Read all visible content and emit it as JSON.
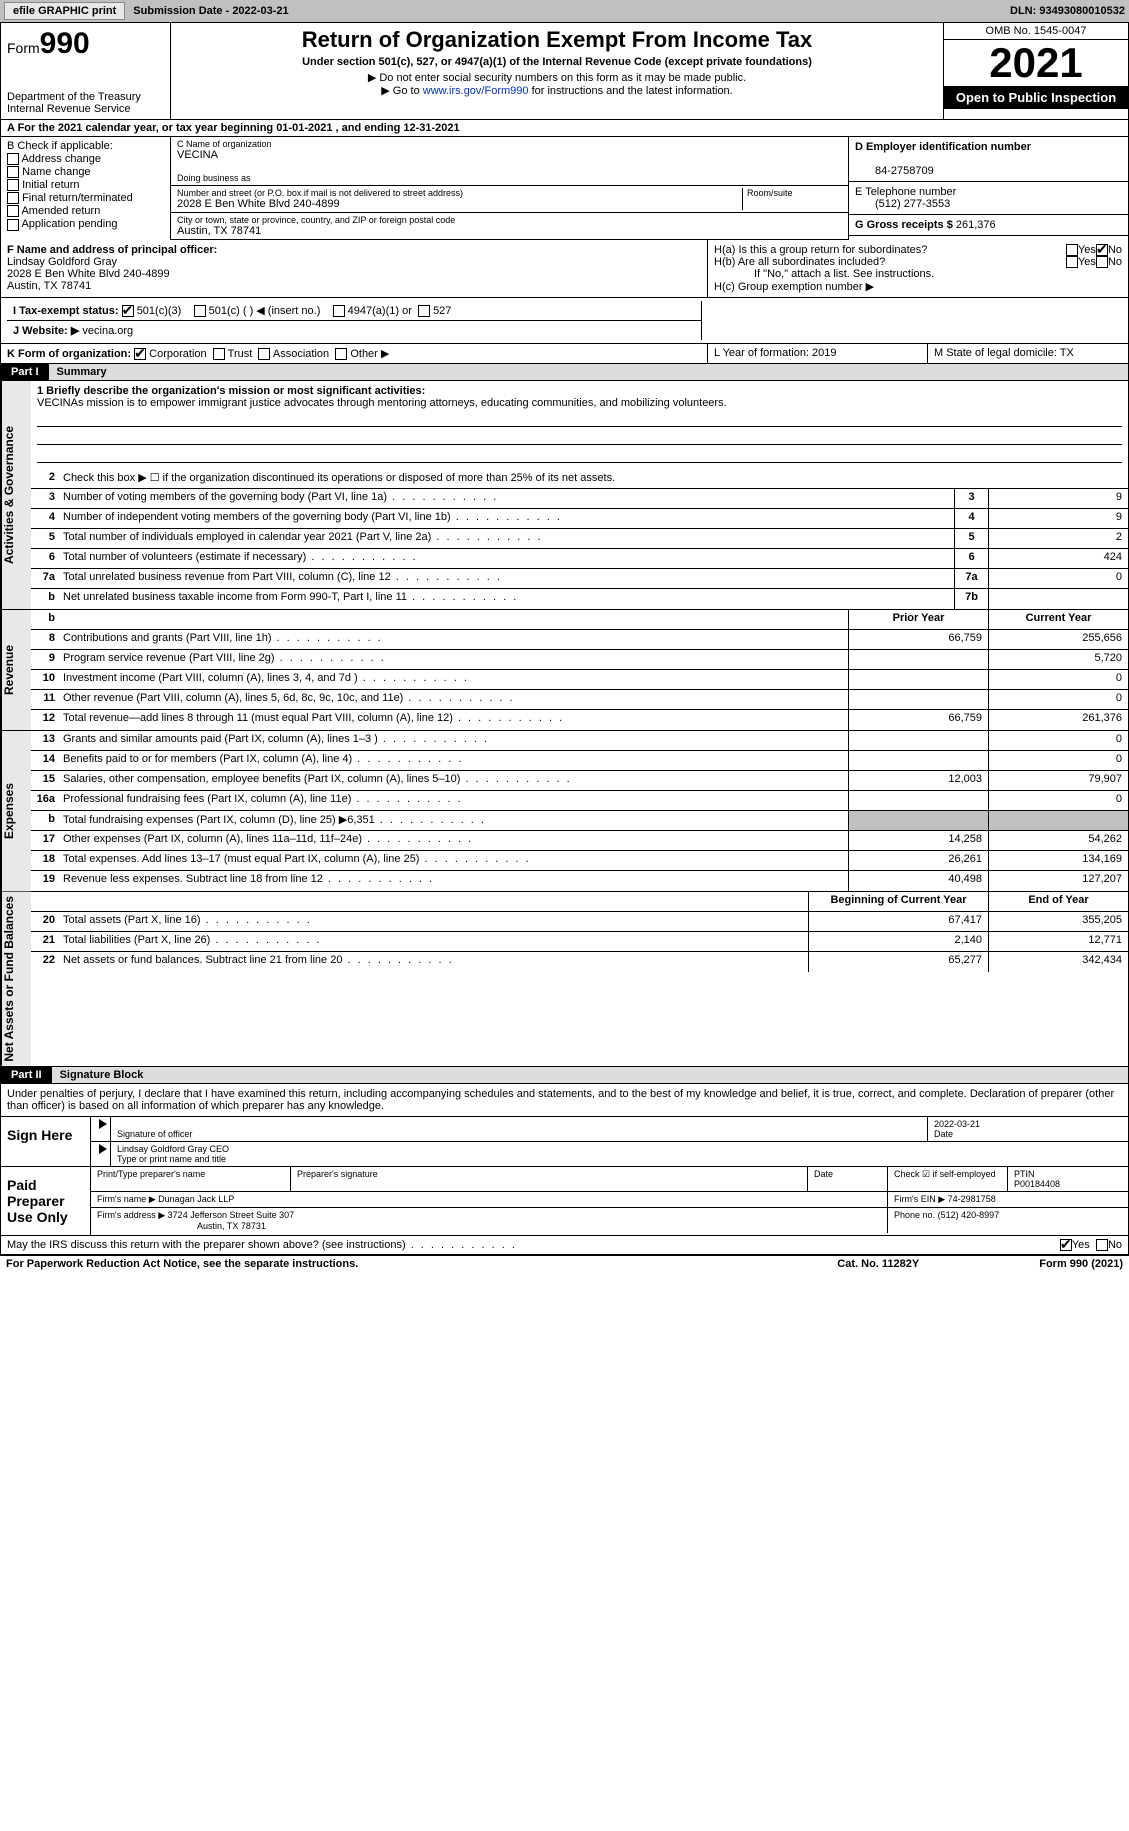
{
  "topbar": {
    "efile": "efile GRAPHIC print",
    "submission": "Submission Date - 2022-03-21",
    "dln": "DLN: 93493080010532"
  },
  "header": {
    "form": "Form",
    "num": "990",
    "dept": "Department of the Treasury Internal Revenue Service",
    "title": "Return of Organization Exempt From Income Tax",
    "sub1": "Under section 501(c), 527, or 4947(a)(1) of the Internal Revenue Code (except private foundations)",
    "sub2": "▶ Do not enter social security numbers on this form as it may be made public.",
    "sub3_pre": "▶ Go to ",
    "sub3_link": "www.irs.gov/Form990",
    "sub3_post": " for instructions and the latest information.",
    "omb": "OMB No. 1545-0047",
    "year": "2021",
    "public": "Open to Public Inspection"
  },
  "rowA": "A For the 2021 calendar year, or tax year beginning 01-01-2021    , and ending 12-31-2021",
  "colB": {
    "hdr": "B Check if applicable:",
    "opts": [
      "Address change",
      "Name change",
      "Initial return",
      "Final return/terminated",
      "Amended return",
      "Application pending"
    ]
  },
  "colC": {
    "name_lbl": "C Name of organization",
    "name": "VECINA",
    "dba_lbl": "Doing business as",
    "dba": "",
    "addr_lbl": "Number and street (or P.O. box if mail is not delivered to street address)",
    "room_lbl": "Room/suite",
    "addr": "2028 E Ben White Blvd 240-4899",
    "city_lbl": "City or town, state or province, country, and ZIP or foreign postal code",
    "city": "Austin, TX  78741"
  },
  "colD": {
    "ein_lbl": "D Employer identification number",
    "ein": "84-2758709",
    "tel_lbl": "E Telephone number",
    "tel": "(512) 277-3553",
    "gross_lbl": "G Gross receipts $",
    "gross": "261,376"
  },
  "rowF": {
    "lbl": "F Name and address of principal officer:",
    "name": "Lindsay Goldford Gray",
    "addr": "2028 E Ben White Blvd 240-4899",
    "city": "Austin, TX  78741"
  },
  "rowH": {
    "a": "H(a)  Is this a group return for subordinates?",
    "b": "H(b)  Are all subordinates included?",
    "bno": "If \"No,\" attach a list. See instructions.",
    "c": "H(c)  Group exemption number ▶",
    "yes": "Yes",
    "no": "No"
  },
  "rowI": {
    "lbl": "I    Tax-exempt status:",
    "o1": "501(c)(3)",
    "o2": "501(c) (   ) ◀ (insert no.)",
    "o3": "4947(a)(1) or",
    "o4": "527"
  },
  "rowJ": {
    "lbl": "J   Website: ▶",
    "val": "vecina.org"
  },
  "rowK": {
    "lbl": "K Form of organization:",
    "o1": "Corporation",
    "o2": "Trust",
    "o3": "Association",
    "o4": "Other ▶",
    "yof": "L Year of formation: 2019",
    "state": "M State of legal domicile: TX"
  },
  "partI": {
    "num": "Part I",
    "lbl": "Summary"
  },
  "mission": {
    "lbl": "1  Briefly describe the organization's mission or most significant activities:",
    "txt": "VECINAs mission is to empower immigrant justice advocates through mentoring attorneys, educating communities, and mobilizing volunteers."
  },
  "gov_lines": [
    {
      "n": "2",
      "t": "Check this box ▶ ☐  if the organization discontinued its operations or disposed of more than 25% of its net assets."
    },
    {
      "n": "3",
      "t": "Number of voting members of the governing body (Part VI, line 1a)",
      "b": "3",
      "v": "9"
    },
    {
      "n": "4",
      "t": "Number of independent voting members of the governing body (Part VI, line 1b)",
      "b": "4",
      "v": "9"
    },
    {
      "n": "5",
      "t": "Total number of individuals employed in calendar year 2021 (Part V, line 2a)",
      "b": "5",
      "v": "2"
    },
    {
      "n": "6",
      "t": "Total number of volunteers (estimate if necessary)",
      "b": "6",
      "v": "424"
    },
    {
      "n": "7a",
      "t": "Total unrelated business revenue from Part VIII, column (C), line 12",
      "b": "7a",
      "v": "0"
    },
    {
      "n": "b",
      "t": "Net unrelated business taxable income from Form 990-T, Part I, line 11",
      "b": "7b",
      "v": ""
    }
  ],
  "rev_hdr": {
    "py": "Prior Year",
    "cy": "Current Year"
  },
  "rev_lines": [
    {
      "n": "8",
      "t": "Contributions and grants (Part VIII, line 1h)",
      "py": "66,759",
      "cy": "255,656"
    },
    {
      "n": "9",
      "t": "Program service revenue (Part VIII, line 2g)",
      "py": "",
      "cy": "5,720"
    },
    {
      "n": "10",
      "t": "Investment income (Part VIII, column (A), lines 3, 4, and 7d )",
      "py": "",
      "cy": "0"
    },
    {
      "n": "11",
      "t": "Other revenue (Part VIII, column (A), lines 5, 6d, 8c, 9c, 10c, and 11e)",
      "py": "",
      "cy": "0"
    },
    {
      "n": "12",
      "t": "Total revenue—add lines 8 through 11 (must equal Part VIII, column (A), line 12)",
      "py": "66,759",
      "cy": "261,376"
    }
  ],
  "exp_lines": [
    {
      "n": "13",
      "t": "Grants and similar amounts paid (Part IX, column (A), lines 1–3 )",
      "py": "",
      "cy": "0"
    },
    {
      "n": "14",
      "t": "Benefits paid to or for members (Part IX, column (A), line 4)",
      "py": "",
      "cy": "0"
    },
    {
      "n": "15",
      "t": "Salaries, other compensation, employee benefits (Part IX, column (A), lines 5–10)",
      "py": "12,003",
      "cy": "79,907"
    },
    {
      "n": "16a",
      "t": "Professional fundraising fees (Part IX, column (A), line 11e)",
      "py": "",
      "cy": "0"
    },
    {
      "n": "b",
      "t": "Total fundraising expenses (Part IX, column (D), line 25) ▶6,351",
      "py": "grey",
      "cy": "grey"
    },
    {
      "n": "17",
      "t": "Other expenses (Part IX, column (A), lines 11a–11d, 11f–24e)",
      "py": "14,258",
      "cy": "54,262"
    },
    {
      "n": "18",
      "t": "Total expenses. Add lines 13–17 (must equal Part IX, column (A), line 25)",
      "py": "26,261",
      "cy": "134,169"
    },
    {
      "n": "19",
      "t": "Revenue less expenses. Subtract line 18 from line 12",
      "py": "40,498",
      "cy": "127,207"
    }
  ],
  "na_hdr": {
    "py": "Beginning of Current Year",
    "cy": "End of Year"
  },
  "na_lines": [
    {
      "n": "20",
      "t": "Total assets (Part X, line 16)",
      "py": "67,417",
      "cy": "355,205"
    },
    {
      "n": "21",
      "t": "Total liabilities (Part X, line 26)",
      "py": "2,140",
      "cy": "12,771"
    },
    {
      "n": "22",
      "t": "Net assets or fund balances. Subtract line 21 from line 20",
      "py": "65,277",
      "cy": "342,434"
    }
  ],
  "partII": {
    "num": "Part II",
    "lbl": "Signature Block"
  },
  "decl": "Under penalties of perjury, I declare that I have examined this return, including accompanying schedules and statements, and to the best of my knowledge and belief, it is true, correct, and complete. Declaration of preparer (other than officer) is based on all information of which preparer has any knowledge.",
  "sign": {
    "lbl": "Sign Here",
    "sig_lbl": "Signature of officer",
    "date": "2022-03-21",
    "date_lbl": "Date",
    "name": "Lindsay Goldford Gray CEO",
    "name_lbl": "Type or print name and title"
  },
  "prep": {
    "lbl": "Paid Preparer Use Only",
    "pname_lbl": "Print/Type preparer's name",
    "psig_lbl": "Preparer's signature",
    "pdate_lbl": "Date",
    "self_lbl": "Check ☑ if self-employed",
    "ptin_lbl": "PTIN",
    "ptin": "P00184408",
    "firm_lbl": "Firm's name   ▶",
    "firm": "Dunagan Jack LLP",
    "fein_lbl": "Firm's EIN ▶",
    "fein": "74-2981758",
    "faddr_lbl": "Firm's address ▶",
    "faddr": "3724 Jefferson Street Suite 307",
    "fcity": "Austin, TX  78731",
    "phone_lbl": "Phone no.",
    "phone": "(512) 420-8997"
  },
  "discuss": "May the IRS discuss this return with the preparer shown above? (see instructions)",
  "footer": {
    "pra": "For Paperwork Reduction Act Notice, see the separate instructions.",
    "cat": "Cat. No. 11282Y",
    "form": "Form 990 (2021)"
  },
  "vtabs": {
    "gov": "Activities & Governance",
    "rev": "Revenue",
    "exp": "Expenses",
    "na": "Net Assets or Fund Balances"
  }
}
